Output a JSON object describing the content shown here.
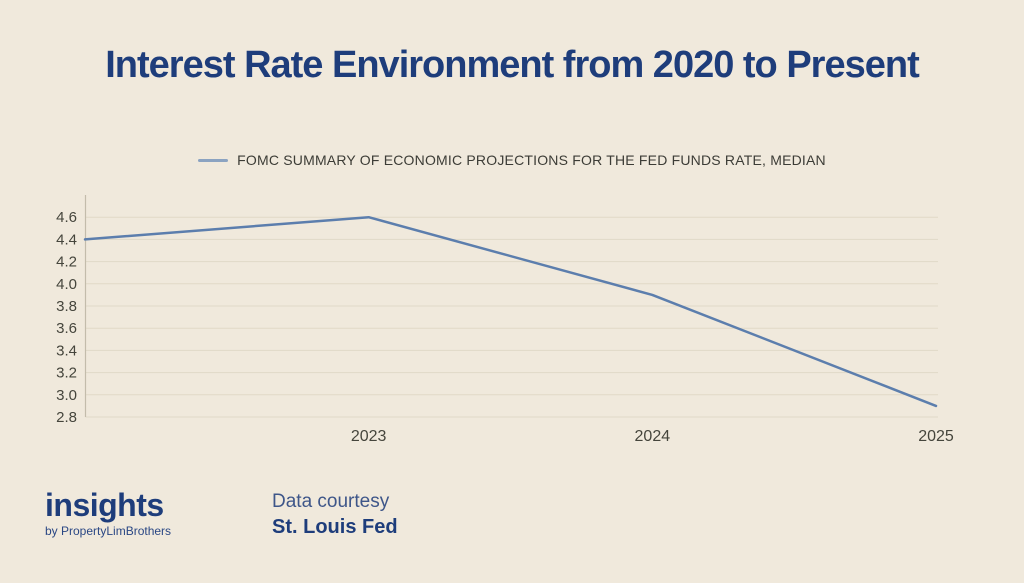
{
  "title": "Interest Rate Environment from 2020 to Present",
  "legend": {
    "label": "FOMC SUMMARY OF ECONOMIC PROJECTIONS FOR THE FED FUNDS RATE, MEDIAN",
    "swatch_color": "#8ba3c1"
  },
  "chart_data": {
    "type": "line",
    "title": "Interest Rate Environment from 2020 to Present",
    "series": [
      {
        "name": "FOMC Summary of Economic Projections for the Fed Funds Rate, Median",
        "x": [
          2022,
          2023,
          2024,
          2025
        ],
        "values": [
          4.4,
          4.6,
          3.9,
          2.9
        ]
      }
    ],
    "x_tick_labels": [
      "2023",
      "2024",
      "2025"
    ],
    "x_tick_positions": [
      2023,
      2024,
      2025
    ],
    "y_ticks": [
      2.8,
      3.0,
      3.2,
      3.4,
      3.6,
      3.8,
      4.0,
      4.2,
      4.4,
      4.6
    ],
    "ylim": [
      2.8,
      4.8
    ],
    "xlim": [
      2022,
      2025
    ],
    "grid": "horizontal",
    "legend_position": "top-center",
    "colors": {
      "line": "#5c7ead",
      "grid": "#e1d9c7",
      "axis": "#c3bcab",
      "tick_label": "#45453c",
      "background": "#f0e9dc",
      "title": "#1e3d7b"
    }
  },
  "footer": {
    "brand": "insights",
    "brand_byline": "by PropertyLimBrothers",
    "credit_label": "Data courtesy",
    "credit_source": "St. Louis Fed"
  }
}
